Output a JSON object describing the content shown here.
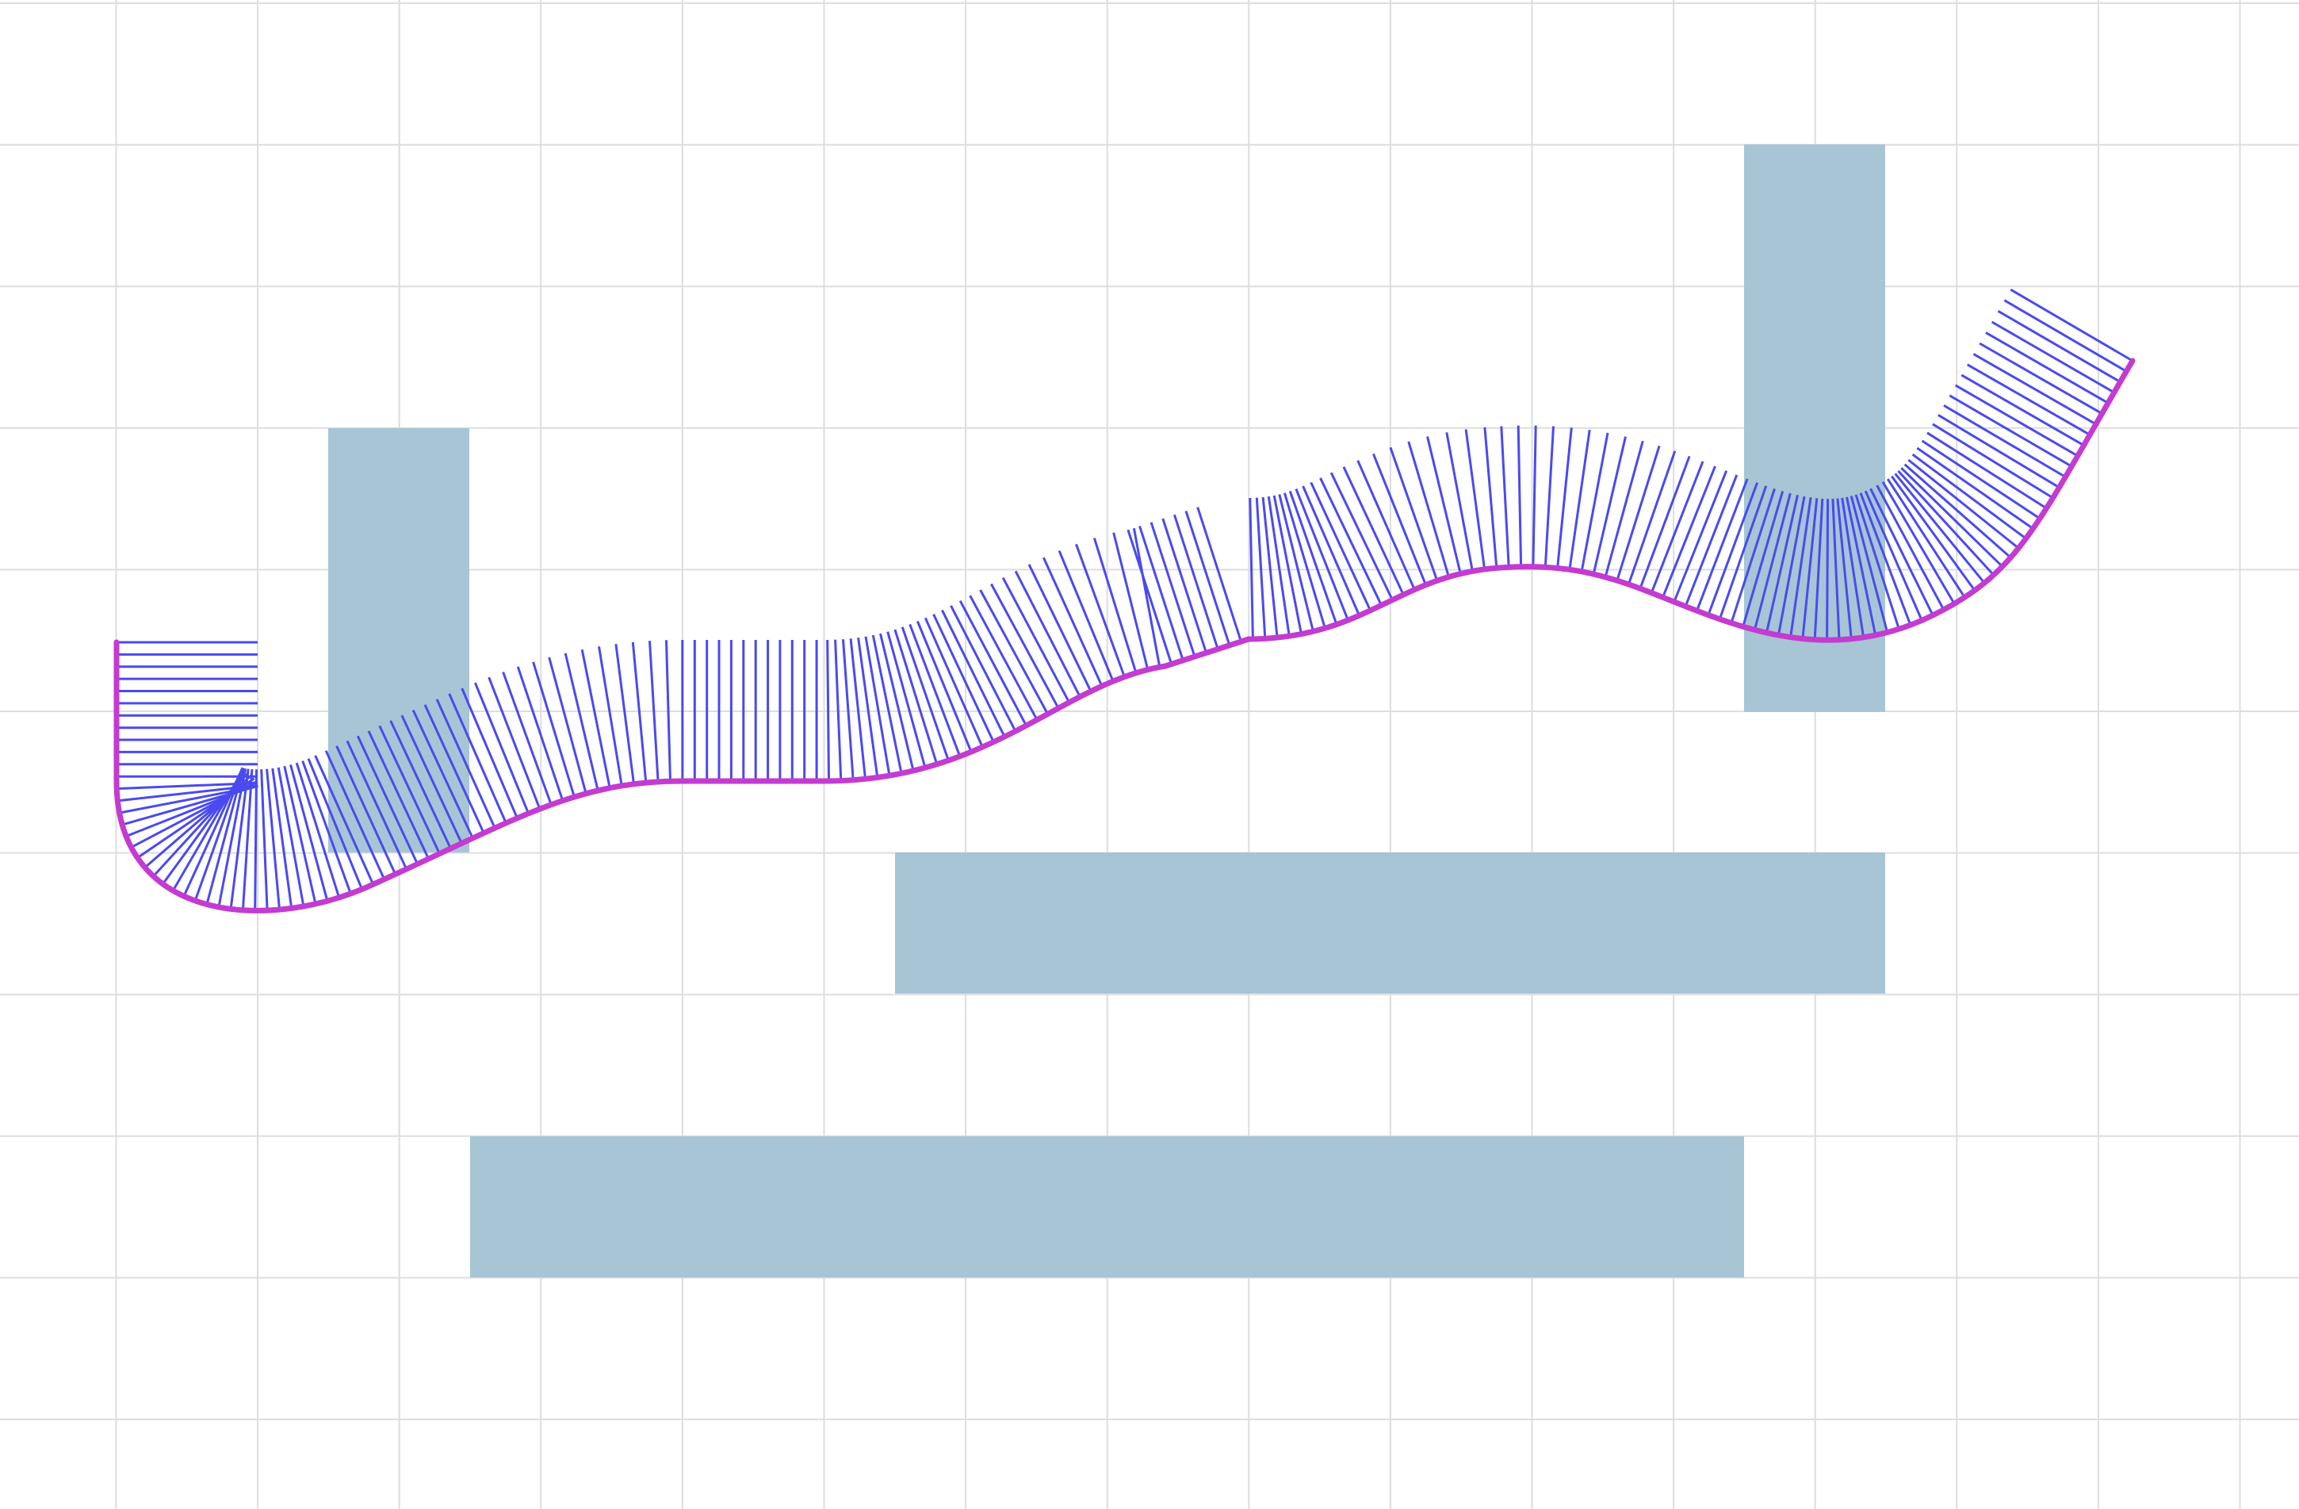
{
  "colors": {
    "background": "#ffffff",
    "grid": "#dcdde0",
    "obstacle": "#a7c5d5",
    "curve": "#c43bd0",
    "normals": "#4a4af0"
  },
  "grid": {
    "visible": true,
    "rows": 11,
    "cols": 17
  },
  "obstacles": [
    {
      "name": "obstacle-left-pillar"
    },
    {
      "name": "obstacle-right-pillar"
    },
    {
      "name": "obstacle-middle-bar"
    },
    {
      "name": "obstacle-bottom-bar"
    }
  ],
  "curve": {
    "name": "path-curve",
    "normal_line_count": 200
  }
}
